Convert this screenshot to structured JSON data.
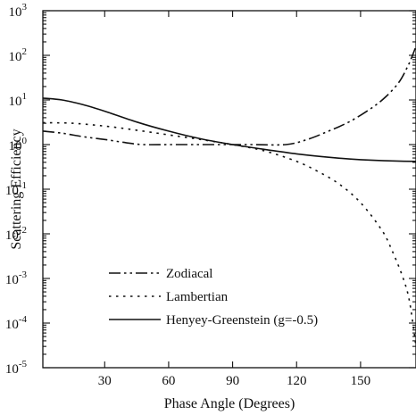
{
  "chart_data": {
    "type": "line",
    "xlabel": "Phase Angle (Degrees)",
    "ylabel": "Scattering Efficiency",
    "xlim": [
      1,
      176
    ],
    "ylim": [
      1e-05,
      1000
    ],
    "y_scale": "log",
    "x_ticks": [
      30,
      60,
      90,
      120,
      150
    ],
    "y_ticks": [
      {
        "value": 1e-05,
        "base": "10",
        "exp": "-5"
      },
      {
        "value": 0.0001,
        "base": "10",
        "exp": "-4"
      },
      {
        "value": 0.001,
        "base": "10",
        "exp": "-3"
      },
      {
        "value": 0.01,
        "base": "10",
        "exp": "-2"
      },
      {
        "value": 0.1,
        "base": "10",
        "exp": "-1"
      },
      {
        "value": 1,
        "base": "10",
        "exp": "0"
      },
      {
        "value": 10,
        "base": "10",
        "exp": "1"
      },
      {
        "value": 100,
        "base": "10",
        "exp": "2"
      },
      {
        "value": 1000,
        "base": "10",
        "exp": "3"
      }
    ],
    "grid": false,
    "legend_position": "bottom-left",
    "series": [
      {
        "name": "Zodiacal",
        "style": "dash-dot-dot",
        "x": [
          1,
          10,
          20,
          30,
          40,
          48,
          60,
          75,
          90,
          100,
          115,
          125,
          135,
          145,
          155,
          162,
          168,
          172,
          174,
          176
        ],
        "y": [
          2.0,
          1.8,
          1.5,
          1.3,
          1.1,
          1.0,
          1.0,
          1.0,
          1.0,
          1.0,
          1.0,
          1.3,
          2.0,
          3.3,
          6.5,
          12,
          25,
          55,
          90,
          160
        ]
      },
      {
        "name": "Lambertian",
        "style": "dotted",
        "x": [
          1,
          15,
          30,
          45,
          60,
          75,
          90,
          105,
          120,
          130,
          140,
          150,
          160,
          165,
          170,
          173,
          176
        ],
        "y": [
          3.1,
          3.0,
          2.6,
          2.1,
          1.65,
          1.3,
          1.0,
          0.72,
          0.42,
          0.25,
          0.13,
          0.05,
          0.012,
          0.004,
          0.001,
          0.0003,
          3e-05
        ]
      },
      {
        "name": "Henyey-Greenstein (g=-0.5)",
        "style": "solid",
        "x": [
          1,
          10,
          20,
          30,
          45,
          60,
          75,
          90,
          105,
          120,
          135,
          150,
          165,
          176
        ],
        "y": [
          11,
          10,
          7.8,
          5.6,
          3.2,
          2.0,
          1.35,
          1.0,
          0.78,
          0.62,
          0.52,
          0.46,
          0.43,
          0.42
        ]
      }
    ]
  }
}
